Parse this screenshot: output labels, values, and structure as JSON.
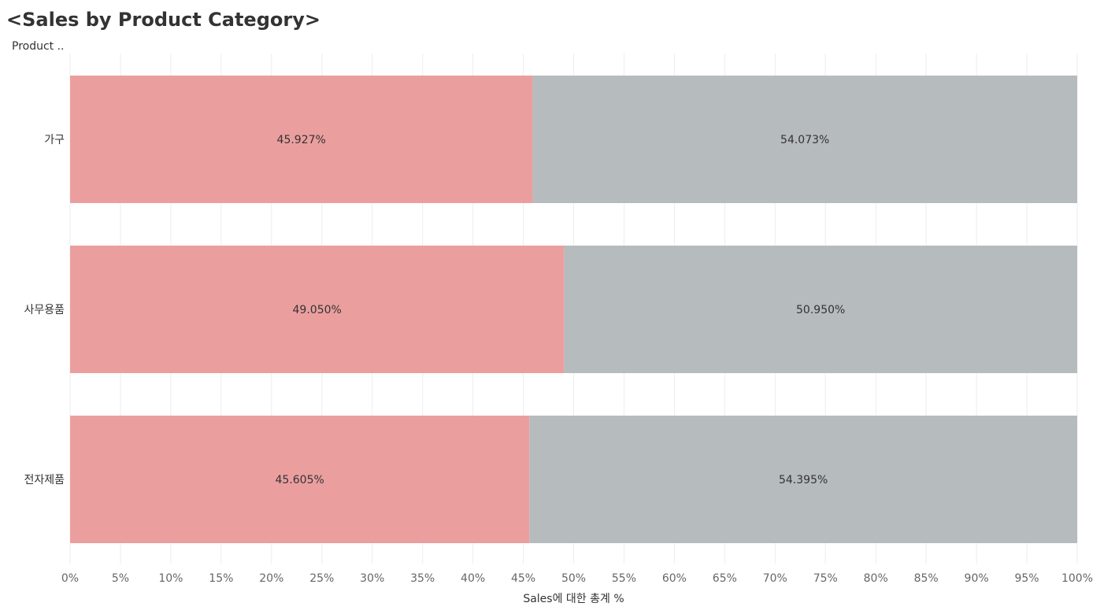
{
  "title": "<Sales by Product Category>",
  "row_header": "Product ..",
  "colors": {
    "segment_1": "#EA9F9E",
    "segment_2": "#B6BBBD",
    "gridline": "#EDEDED",
    "label": "#333333",
    "tick_label": "#666666"
  },
  "chart_data": {
    "type": "bar",
    "orientation": "horizontal",
    "stacked": true,
    "categories": [
      "가구",
      "사무용품",
      "전자제품"
    ],
    "series": [
      {
        "values": [
          45.927,
          49.05,
          45.605
        ],
        "labels": [
          "45.927%",
          "49.050%",
          "45.605%"
        ]
      },
      {
        "values": [
          54.073,
          50.95,
          54.395
        ],
        "labels": [
          "54.073%",
          "50.950%",
          "54.395%"
        ]
      }
    ],
    "xlabel": "Sales에 대한 총계 %",
    "xlim": [
      0,
      100
    ],
    "xticks": [
      "0%",
      "5%",
      "10%",
      "15%",
      "20%",
      "25%",
      "30%",
      "35%",
      "40%",
      "45%",
      "50%",
      "55%",
      "60%",
      "65%",
      "70%",
      "75%",
      "80%",
      "85%",
      "90%",
      "95%",
      "100%"
    ],
    "grid": true,
    "legend": "none"
  }
}
